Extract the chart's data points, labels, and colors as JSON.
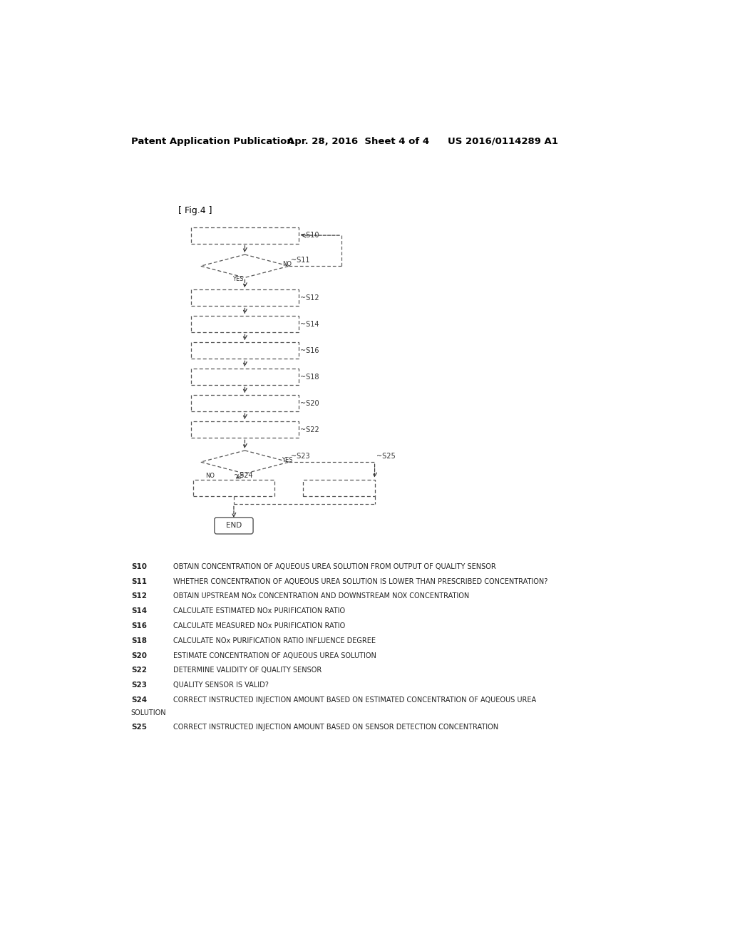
{
  "title_left": "Patent Application Publication",
  "title_mid": "Apr. 28, 2016  Sheet 4 of 4",
  "title_right": "US 2016/0114289 A1",
  "fig_label": "[ Fig.4 ]",
  "background_color": "#ffffff",
  "legend": [
    {
      "id": "S10",
      "text": "OBTAIN CONCENTRATION OF AQUEOUS UREA SOLUTION FROM OUTPUT OF QUALITY SENSOR"
    },
    {
      "id": "S11",
      "text": "WHETHER CONCENTRATION OF AQUEOUS UREA SOLUTION IS LOWER THAN PRESCRIBED CONCENTRATION?"
    },
    {
      "id": "S12",
      "text": "OBTAIN UPSTREAM NOx CONCENTRATION AND DOWNSTREAM NOX CONCENTRATION"
    },
    {
      "id": "S14",
      "text": "CALCULATE ESTIMATED NOx PURIFICATION RATIO"
    },
    {
      "id": "S16",
      "text": "CALCULATE MEASURED NOx PURIFICATION RATIO"
    },
    {
      "id": "S18",
      "text": "CALCULATE NOx PURIFICATION RATIO INFLUENCE DEGREE"
    },
    {
      "id": "S20",
      "text": "ESTIMATE CONCENTRATION OF AQUEOUS UREA SOLUTION"
    },
    {
      "id": "S22",
      "text": "DETERMINE VALIDITY OF QUALITY SENSOR"
    },
    {
      "id": "S23",
      "text": "QUALITY SENSOR IS VALID?"
    },
    {
      "id": "S24",
      "text": "CORRECT INSTRUCTED INJECTION AMOUNT BASED ON ESTIMATED CONCENTRATION OF AQUEOUS UREA\nSOLUTION"
    },
    {
      "id": "S25",
      "text": "CORRECT INSTRUCTED INJECTION AMOUNT BASED ON SENSOR DETECTION CONCENTRATION"
    }
  ]
}
